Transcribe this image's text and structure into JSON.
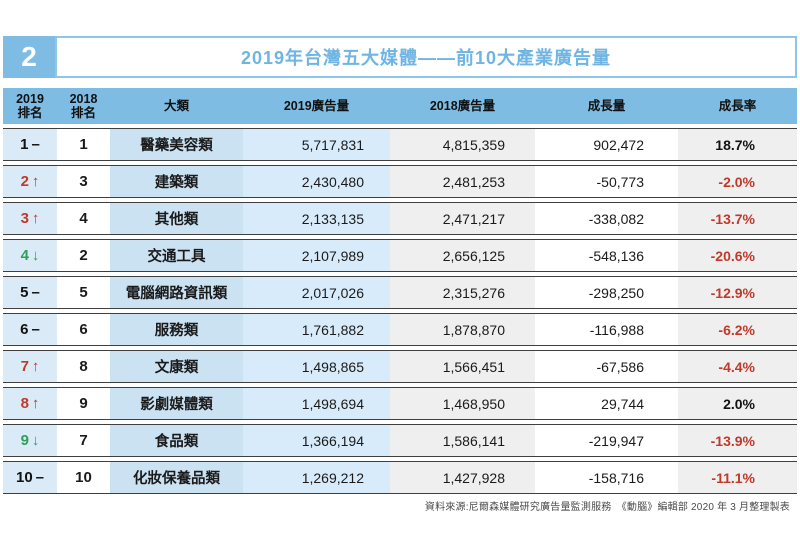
{
  "badge": "2",
  "title": "2019年台灣五大媒體——前10大產業廣告量",
  "colors": {
    "header_blue": "#7ebce4",
    "title_blue": "#6fb5e3",
    "rank_up_red": "#c0392b",
    "rank_down_green": "#2e9e5b",
    "negative_rate_red": "#c0392b",
    "light_blue_cell": "#cbe2f3",
    "lighter_blue_cell": "#d8ebfa",
    "gray_cell": "#efefef"
  },
  "columns": [
    "2019\n排名",
    "2018\n排名",
    "大類",
    "2019廣告量",
    "2018廣告量",
    "成長量",
    "成長率"
  ],
  "rows": [
    {
      "rank2019": "1",
      "trend": "same",
      "trend_symbol": "–",
      "rank2018": "1",
      "category": "醫藥美容類",
      "amt2019": "5,717,831",
      "amt2018": "4,815,359",
      "growth": "902,472",
      "rate": "18.7%"
    },
    {
      "rank2019": "2",
      "trend": "up",
      "trend_symbol": "↑",
      "rank2018": "3",
      "category": "建築類",
      "amt2019": "2,430,480",
      "amt2018": "2,481,253",
      "growth": "-50,773",
      "rate": "-2.0%"
    },
    {
      "rank2019": "3",
      "trend": "up",
      "trend_symbol": "↑",
      "rank2018": "4",
      "category": "其他類",
      "amt2019": "2,133,135",
      "amt2018": "2,471,217",
      "growth": "-338,082",
      "rate": "-13.7%"
    },
    {
      "rank2019": "4",
      "trend": "down",
      "trend_symbol": "↓",
      "rank2018": "2",
      "category": "交通工具",
      "amt2019": "2,107,989",
      "amt2018": "2,656,125",
      "growth": "-548,136",
      "rate": "-20.6%"
    },
    {
      "rank2019": "5",
      "trend": "same",
      "trend_symbol": "–",
      "rank2018": "5",
      "category": "電腦網路資訊類",
      "amt2019": "2,017,026",
      "amt2018": "2,315,276",
      "growth": "-298,250",
      "rate": "-12.9%"
    },
    {
      "rank2019": "6",
      "trend": "same",
      "trend_symbol": "–",
      "rank2018": "6",
      "category": "服務類",
      "amt2019": "1,761,882",
      "amt2018": "1,878,870",
      "growth": "-116,988",
      "rate": "-6.2%"
    },
    {
      "rank2019": "7",
      "trend": "up",
      "trend_symbol": "↑",
      "rank2018": "8",
      "category": "文康類",
      "amt2019": "1,498,865",
      "amt2018": "1,566,451",
      "growth": "-67,586",
      "rate": "-4.4%"
    },
    {
      "rank2019": "8",
      "trend": "up",
      "trend_symbol": "↑",
      "rank2018": "9",
      "category": "影劇媒體類",
      "amt2019": "1,498,694",
      "amt2018": "1,468,950",
      "growth": "29,744",
      "rate": "2.0%"
    },
    {
      "rank2019": "9",
      "trend": "down",
      "trend_symbol": "↓",
      "rank2018": "7",
      "category": "食品類",
      "amt2019": "1,366,194",
      "amt2018": "1,586,141",
      "growth": "-219,947",
      "rate": "-13.9%"
    },
    {
      "rank2019": "10",
      "trend": "same",
      "trend_symbol": "–",
      "rank2018": "10",
      "category": "化妝保養品類",
      "amt2019": "1,269,212",
      "amt2018": "1,427,928",
      "growth": "-158,716",
      "rate": "-11.1%"
    }
  ],
  "source": "資料來源:尼爾森媒體研究廣告量監測服務　《動腦》編輯部 2020 年 3 月整理製表"
}
